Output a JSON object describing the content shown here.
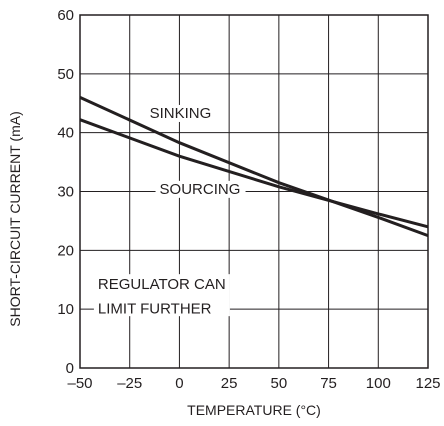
{
  "chart_data": {
    "type": "line",
    "title": "",
    "xlabel": "TEMPERATURE (°C)",
    "ylabel": "SHORT-CIRCUIT CURRENT (mA)",
    "xlim": [
      -50,
      125
    ],
    "ylim": [
      0,
      60
    ],
    "xticks": [
      -50,
      -25,
      0,
      25,
      50,
      75,
      100,
      125
    ],
    "yticks": [
      0,
      10,
      20,
      30,
      40,
      50,
      60
    ],
    "xtick_labels": [
      "–50",
      "–25",
      "0",
      "25",
      "50",
      "75",
      "100",
      "125"
    ],
    "ytick_labels": [
      "0",
      "10",
      "20",
      "30",
      "40",
      "50",
      "60"
    ],
    "grid": true,
    "series": [
      {
        "name": "SINKING",
        "x": [
          -50,
          0,
          50,
          100,
          125
        ],
        "y": [
          46.0,
          38.3,
          31.5,
          25.6,
          22.5
        ]
      },
      {
        "name": "SOURCING",
        "x": [
          -50,
          0,
          50,
          100,
          125
        ],
        "y": [
          42.2,
          36.0,
          30.8,
          26.2,
          24.0
        ]
      }
    ],
    "annotations": [
      {
        "text": "SINKING",
        "x": -15,
        "y": 42.5
      },
      {
        "text": "SOURCING",
        "x": -10,
        "y": 29.6
      },
      {
        "text": "REGULATOR CAN",
        "x": -41,
        "y": 13.4
      },
      {
        "text": "LIMIT FURTHER",
        "x": -41,
        "y": 9.3
      }
    ]
  }
}
